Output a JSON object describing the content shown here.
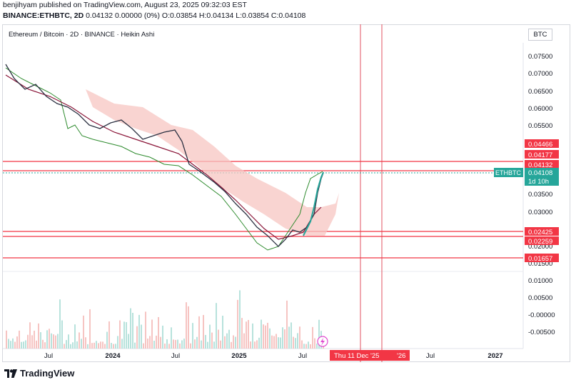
{
  "header": {
    "line1": "benjihyam published on TradingView.com, August 23, 2025 09:32:03 EST",
    "symbol": "BINANCE:ETHBTC, 2D",
    "values": "0.04132 0.00000 (0%) O:0.03854 H:0.04134 L:0.03854 C:0.04108"
  },
  "legend": "Ethereum / Bitcoin · 2D · BINANCE · Heikin Ashi",
  "currency_button": "BTC",
  "footer": {
    "brand": "TradingView"
  },
  "price_tag": {
    "symbol": "ETHBTC",
    "price": "0.04108",
    "countdown": "1d 10h"
  },
  "cursor_label": "Thu 11 Dec '25",
  "cursor_label_tail": "'26",
  "colors": {
    "up": "#26a69a",
    "down": "#ef5350",
    "candle_dark": "#2d3243",
    "level": "#f23645",
    "cloud": "#f7c6c2",
    "base": "#8a1538",
    "lag": "#2e8b2e"
  },
  "chart_data": {
    "type": "line",
    "y_ticks": [
      "0.07500",
      "0.07000",
      "0.06500",
      "0.06000",
      "0.05500",
      "0.03500",
      "0.03000",
      "0.02000",
      "0.01500",
      "0.01000",
      "0.00500",
      "-0.00000",
      "-0.00500"
    ],
    "x_ticks": [
      "Jul",
      "2024",
      "Jul",
      "2025",
      "Jul",
      "Jul",
      "2027"
    ],
    "levels": [
      "0.04466",
      "0.04177",
      "0.04132",
      "0.02425",
      "0.02259",
      "0.01657"
    ],
    "price_path": [
      0.073,
      0.07,
      0.066,
      0.067,
      0.064,
      0.061,
      0.06,
      0.057,
      0.055,
      0.058,
      0.054,
      0.052,
      0.055,
      0.056,
      0.054,
      0.052,
      0.049,
      0.045,
      0.042,
      0.038,
      0.035,
      0.033,
      0.028,
      0.026,
      0.023,
      0.02,
      0.023,
      0.024,
      0.025,
      0.024,
      0.026,
      0.03,
      0.035,
      0.038,
      0.041
    ],
    "ylim": [
      -0.0065,
      0.0795
    ]
  }
}
